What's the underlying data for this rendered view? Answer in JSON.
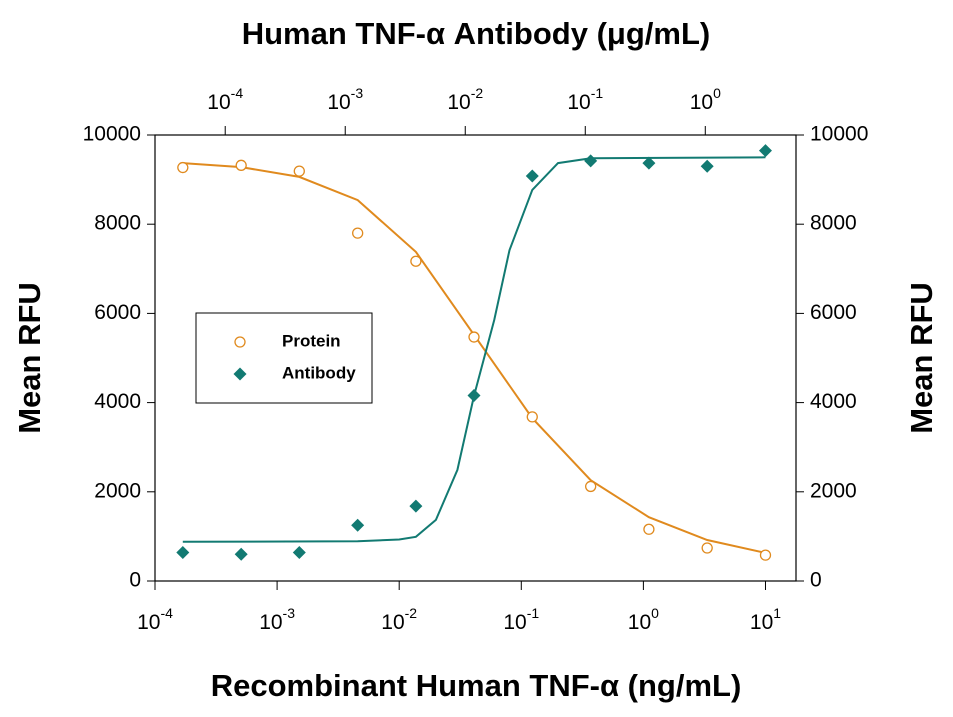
{
  "chart_data": {
    "type": "scatter",
    "title": "Human TNF-α Antibody (μg/mL)",
    "xlabel": "Recombinant Human TNF-α (ng/mL)",
    "ylabel": "Mean RFU",
    "y2label": "Mean RFU",
    "xscale": "log",
    "x2scale": "log",
    "xlim": [
      0.0001,
      17.78
    ],
    "xticks": [
      {
        "value": 0.0001,
        "label": "10^-4"
      },
      {
        "value": 0.001,
        "label": "10^-3"
      },
      {
        "value": 0.01,
        "label": "10^-2"
      },
      {
        "value": 0.1,
        "label": "10^-1"
      },
      {
        "value": 1,
        "label": "10^0"
      },
      {
        "value": 10,
        "label": "10^1"
      }
    ],
    "x2lim": [
      2.6e-05,
      5.7
    ],
    "x2ticks": [
      {
        "value": 0.0001,
        "label": "10^-4"
      },
      {
        "value": 0.001,
        "label": "10^-3"
      },
      {
        "value": 0.01,
        "label": "10^-2"
      },
      {
        "value": 0.1,
        "label": "10^-1"
      },
      {
        "value": 1,
        "label": "10^0"
      }
    ],
    "ylim": [
      0,
      10000
    ],
    "yticks": [
      0,
      2000,
      4000,
      6000,
      8000,
      10000
    ],
    "y2lim": [
      0,
      10000
    ],
    "y2ticks": [
      0,
      2000,
      4000,
      6000,
      8000,
      10000
    ],
    "legend": "left",
    "x": [
      0.000169,
      0.000508,
      0.00152,
      0.00457,
      0.0137,
      0.041,
      0.123,
      0.37,
      1.11,
      3.33,
      10
    ],
    "series": [
      {
        "name": "Protein",
        "color": "#e08a1e",
        "marker": "circle",
        "values": [
          9270,
          9320,
          9190,
          7800,
          7170,
          5470,
          3680,
          2120,
          1160,
          740,
          580
        ],
        "fit": {
          "x": [
            0.000169,
            0.000508,
            0.00152,
            0.00457,
            0.0137,
            0.041,
            0.123,
            0.37,
            1.11,
            3.33,
            10
          ],
          "values": [
            9370,
            9280,
            9060,
            8540,
            7380,
            5520,
            3650,
            2260,
            1430,
            920,
            630
          ]
        }
      },
      {
        "name": "Antibody",
        "color": "#127a72",
        "marker": "diamond",
        "values": [
          640,
          600,
          640,
          1250,
          1680,
          4160,
          9080,
          9420,
          9370,
          9300,
          9650
        ],
        "fit": {
          "x": [
            0.000169,
            0.00457,
            0.01,
            0.0137,
            0.02,
            0.03,
            0.041,
            0.06,
            0.08,
            0.123,
            0.2,
            0.37,
            10
          ],
          "values": [
            880,
            890,
            930,
            990,
            1370,
            2490,
            4150,
            5850,
            7420,
            8770,
            9370,
            9480,
            9500
          ]
        }
      }
    ]
  }
}
